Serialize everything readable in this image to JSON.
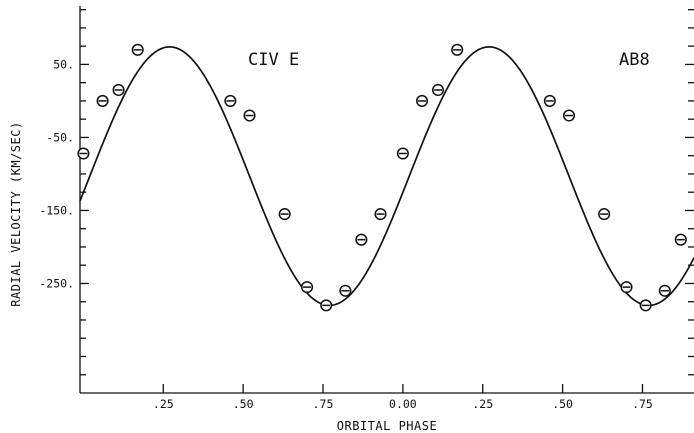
{
  "chart_data": {
    "type": "scatter",
    "title": "",
    "xlabel": "ORBITAL PHASE",
    "ylabel": "RADIAL VELOCITY (KM/SEC)",
    "annotations": [
      "CIV E",
      "AB8"
    ],
    "x_range": [
      -0.0107,
      1.9113
    ],
    "ylim": [
      -400,
      130
    ],
    "x_tick_values": [
      0.25,
      0.5,
      0.75,
      1.0,
      1.25,
      1.5,
      1.75
    ],
    "x_tick_labels": [
      ".25",
      ".50",
      ".75",
      "0.00",
      ".25",
      ".50",
      ".75"
    ],
    "y_tick_values": [
      50,
      -50,
      -150,
      -250
    ],
    "y_tick_labels": [
      "50.",
      "-50.",
      "-150.",
      "-250."
    ],
    "grid": false,
    "series": [
      {
        "type": "scatter",
        "marker": "circled-minus",
        "x": [
          0.0,
          0.06,
          0.11,
          0.17,
          0.46,
          0.52,
          0.63,
          0.7,
          0.76,
          0.82,
          0.87,
          0.93,
          1.0,
          1.06,
          1.11,
          1.17,
          1.46,
          1.52,
          1.63,
          1.7,
          1.76,
          1.82,
          1.87,
          1.93
        ],
        "y": [
          -72,
          0,
          15,
          70,
          0,
          -20,
          -155,
          -255,
          -280,
          -260,
          -190,
          -155,
          -72,
          0,
          15,
          70,
          0,
          -20,
          -155,
          -255,
          -280,
          -260,
          -190,
          -155
        ]
      },
      {
        "type": "line",
        "fit": "sinusoid",
        "gamma": -103,
        "amplitude": 177,
        "x_max_phase": 0.27,
        "x": [
          0.0,
          0.05,
          0.1,
          0.15,
          0.2,
          0.25,
          0.3,
          0.35,
          0.4,
          0.45,
          0.5,
          0.55,
          0.6,
          0.65,
          0.7,
          0.75,
          0.8,
          0.85,
          0.9,
          0.95,
          1.0,
          1.05,
          1.1,
          1.15,
          1.2,
          1.25,
          1.3,
          1.35,
          1.4,
          1.45,
          1.5,
          1.55,
          1.6,
          1.65,
          1.7,
          1.75,
          1.8,
          1.85,
          1.9
        ],
        "y": [
          -74,
          -20,
          28,
          62,
          73,
          73,
          72,
          45,
          5,
          -53,
          -112,
          -170,
          -220,
          -258,
          -278,
          -279,
          -260,
          -225,
          -175,
          -118,
          -74,
          -20,
          28,
          62,
          73,
          73,
          72,
          45,
          5,
          -53,
          -112,
          -170,
          -220,
          -258,
          -278,
          -279,
          -260,
          -225,
          -175
        ]
      }
    ]
  }
}
